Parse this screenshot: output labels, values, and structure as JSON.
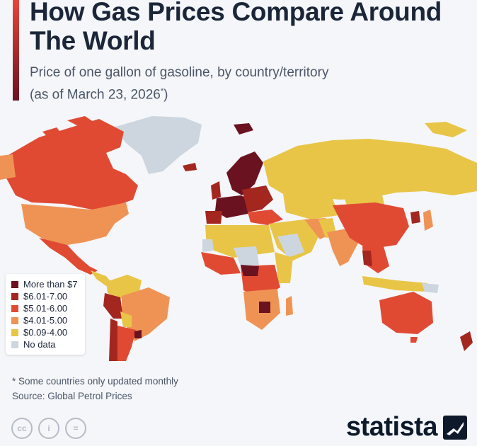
{
  "header": {
    "title": "How Gas Prices Compare Around The World",
    "subtitle_line1": "Price of one gallon of gasoline, by country/territory",
    "subtitle_line2": "(as of March 23, 2026",
    "subtitle_marker": "*",
    "subtitle_close": ")"
  },
  "legend": {
    "items": [
      {
        "label": "More than $7",
        "color": "#6b1220"
      },
      {
        "label": "$6.01-7.00",
        "color": "#a3261f"
      },
      {
        "label": "$5.01-6.00",
        "color": "#e04a33"
      },
      {
        "label": "$4.01-5.00",
        "color": "#ef9355"
      },
      {
        "label": "$0.09-4.00",
        "color": "#e8c547"
      },
      {
        "label": "No data",
        "color": "#cdd6df"
      }
    ]
  },
  "notes": {
    "footnote": "* Some countries only updated monthly",
    "source": "Source: Global Petrol Prices"
  },
  "footer": {
    "license_icons": [
      "cc",
      "i",
      "="
    ],
    "brand": "statista"
  },
  "colors": {
    "ocean": "#f4f6f9",
    "accent_top": "#e8443a",
    "accent_bottom": "#6b1220"
  }
}
